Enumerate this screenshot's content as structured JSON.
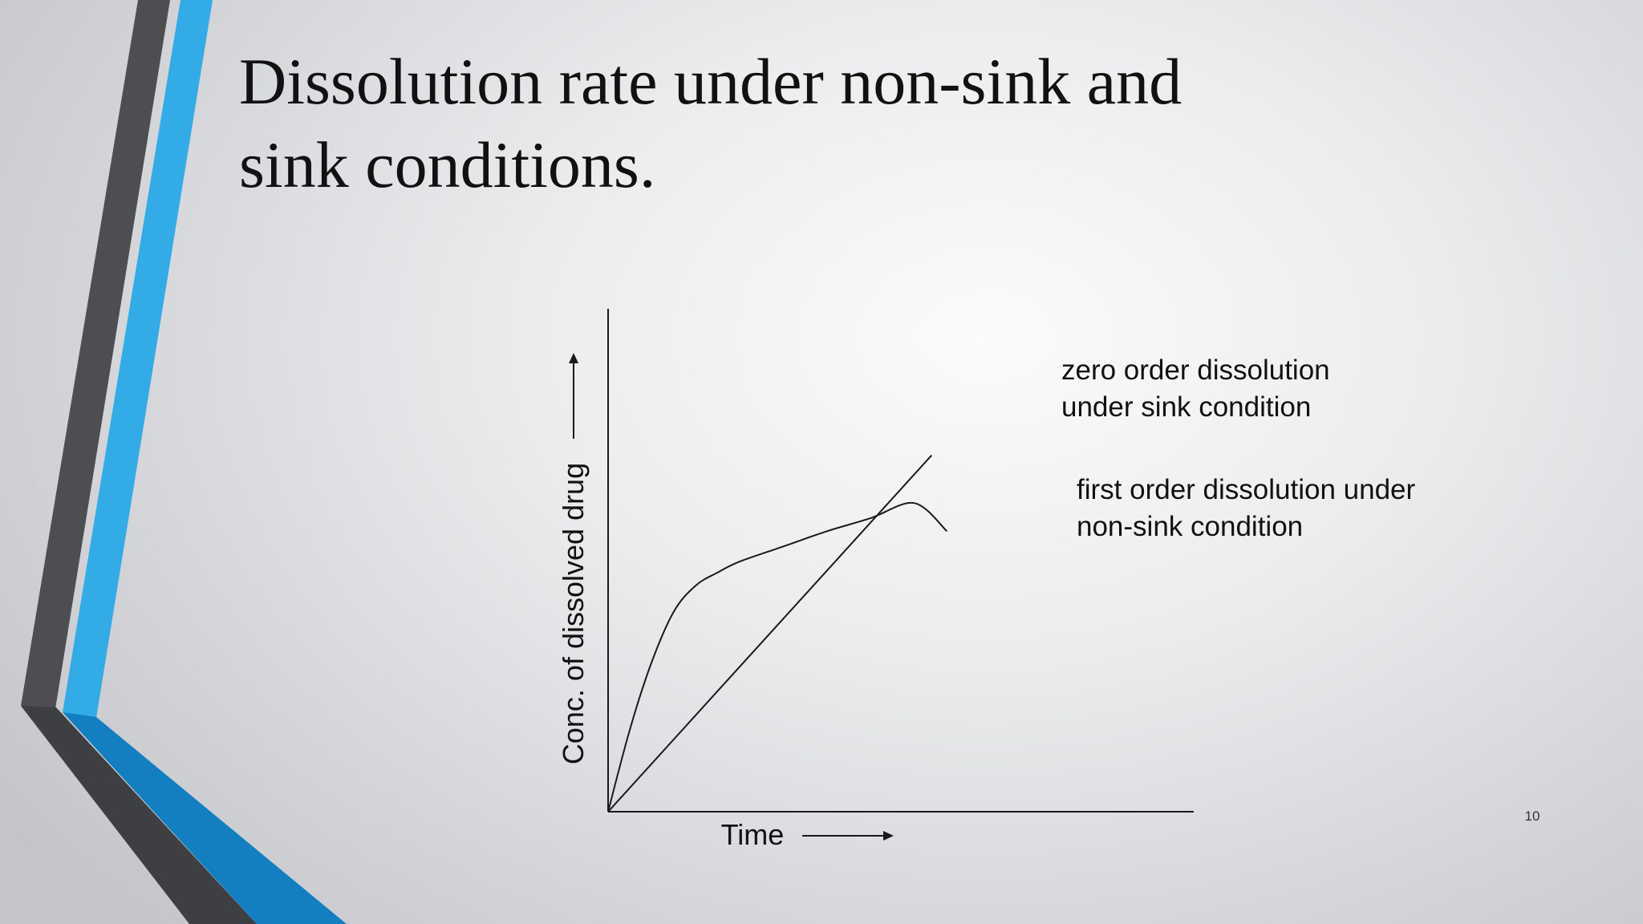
{
  "slide": {
    "title_lines": [
      "Dissolution rate under non-sink and",
      "sink conditions."
    ],
    "slide_number": "10",
    "accent_colors": {
      "dark_gray": "#4c4e51",
      "light_blue": "#33abe6",
      "deep_blue": "#137fc1",
      "axis": "#1a1a1a"
    }
  },
  "chart_data": {
    "type": "line",
    "title": "",
    "xlabel": "Time",
    "ylabel": "Conc. of dissolved drug",
    "x_arrow": true,
    "y_arrow": true,
    "x_ticks": [],
    "y_ticks": [],
    "xlim": [
      0,
      10
    ],
    "ylim": [
      0,
      10
    ],
    "grid": false,
    "legend": "none",
    "series": [
      {
        "name": "zero order dissolution under sink condition",
        "label_lines": [
          "zero order dissolution",
          "under sink condition"
        ],
        "x": [
          0,
          7.4
        ],
        "y": [
          0,
          8.2
        ]
      },
      {
        "name": "first order dissolution under non-sink condition",
        "label_lines": [
          "first order dissolution under",
          "non-sink condition"
        ],
        "x": [
          0,
          0.5,
          1,
          1.5,
          2,
          2.5,
          3,
          4,
          5,
          6,
          7,
          7.75
        ],
        "y": [
          0,
          1.9,
          3.45,
          4.6,
          5.2,
          5.5,
          5.75,
          6.1,
          6.45,
          6.75,
          7.1,
          6.45
        ]
      }
    ]
  }
}
